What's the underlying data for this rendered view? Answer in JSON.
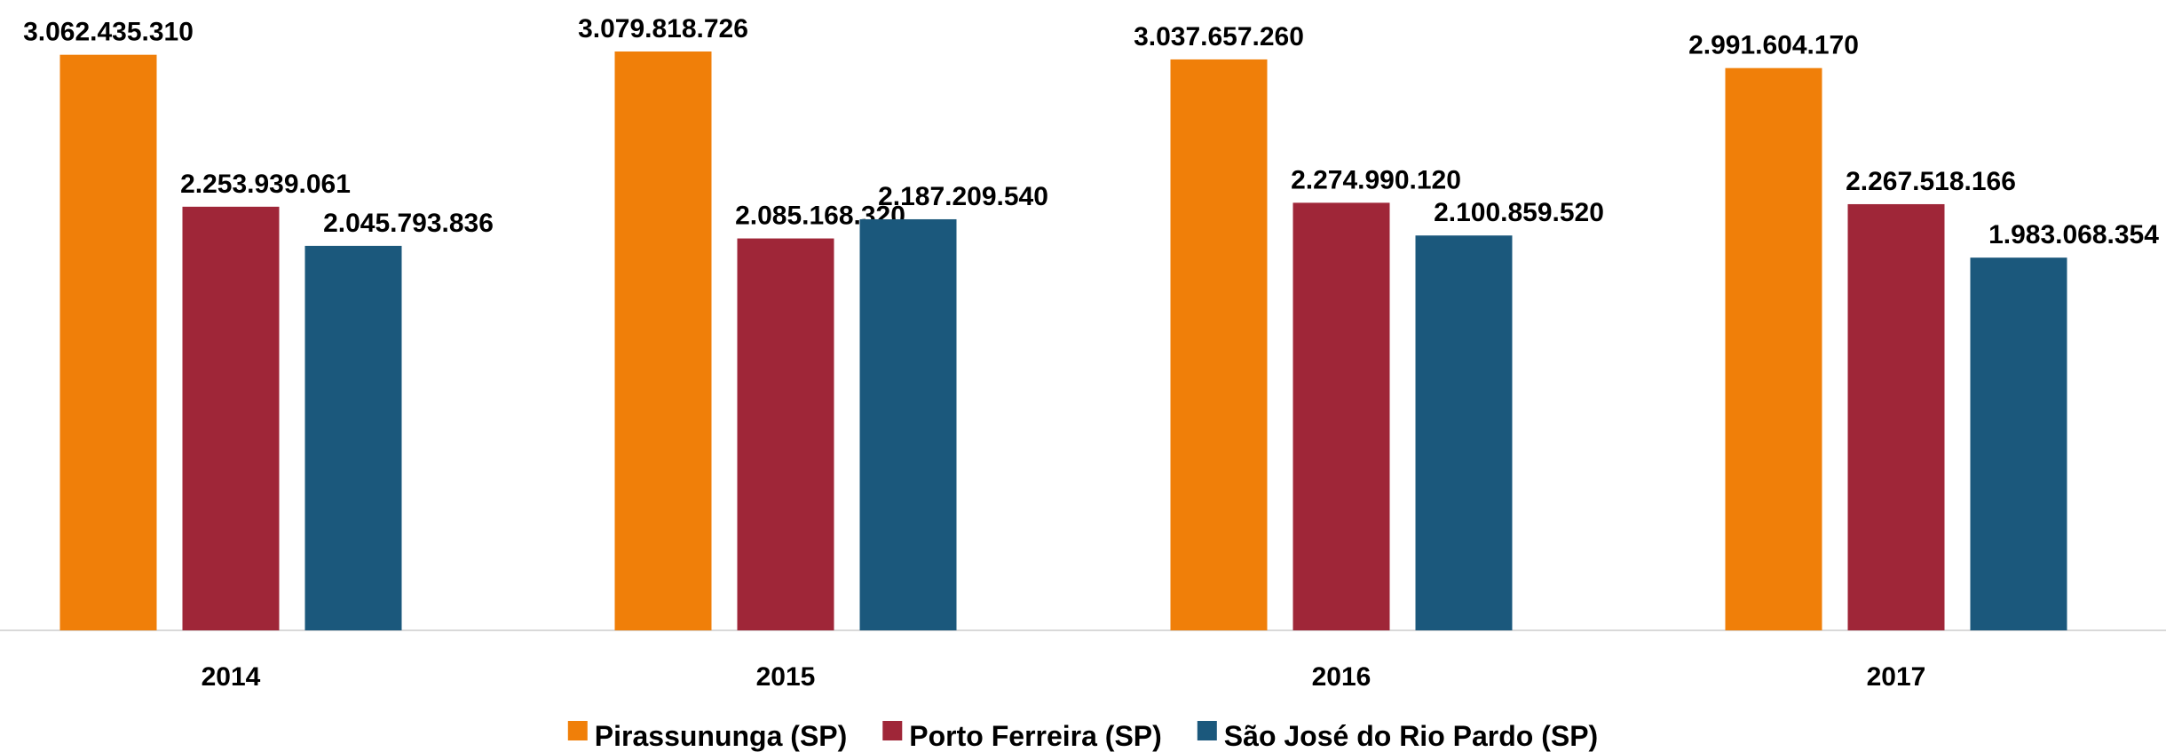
{
  "chart_data": {
    "type": "bar",
    "categories": [
      "2014",
      "2015",
      "2016",
      "2017"
    ],
    "series": [
      {
        "name": "Pirassununga (SP)",
        "color": "#f07f09",
        "values": [
          3062435310,
          3079818726,
          3037657260,
          2991604170
        ],
        "value_labels": [
          "3.062.435.310",
          "3.079.818.726",
          "3.037.657.260",
          "2.991.604.170"
        ]
      },
      {
        "name": "Porto Ferreira (SP)",
        "color": "#9f2638",
        "values": [
          2253939061,
          2085168320,
          2274990120,
          2267518166
        ],
        "value_labels": [
          "2.253.939.061",
          "2.085.168.320",
          "2.274.990.120",
          "2.267.518.166"
        ]
      },
      {
        "name": "São José do Rio Pardo (SP)",
        "color": "#1b587c",
        "values": [
          2045793836,
          2187209540,
          2100859520,
          1983068354
        ],
        "value_labels": [
          "2.045.793.836",
          "2.187.209.540",
          "2.100.859.520",
          "1.983.068.354"
        ]
      }
    ],
    "legend": "bottom"
  }
}
